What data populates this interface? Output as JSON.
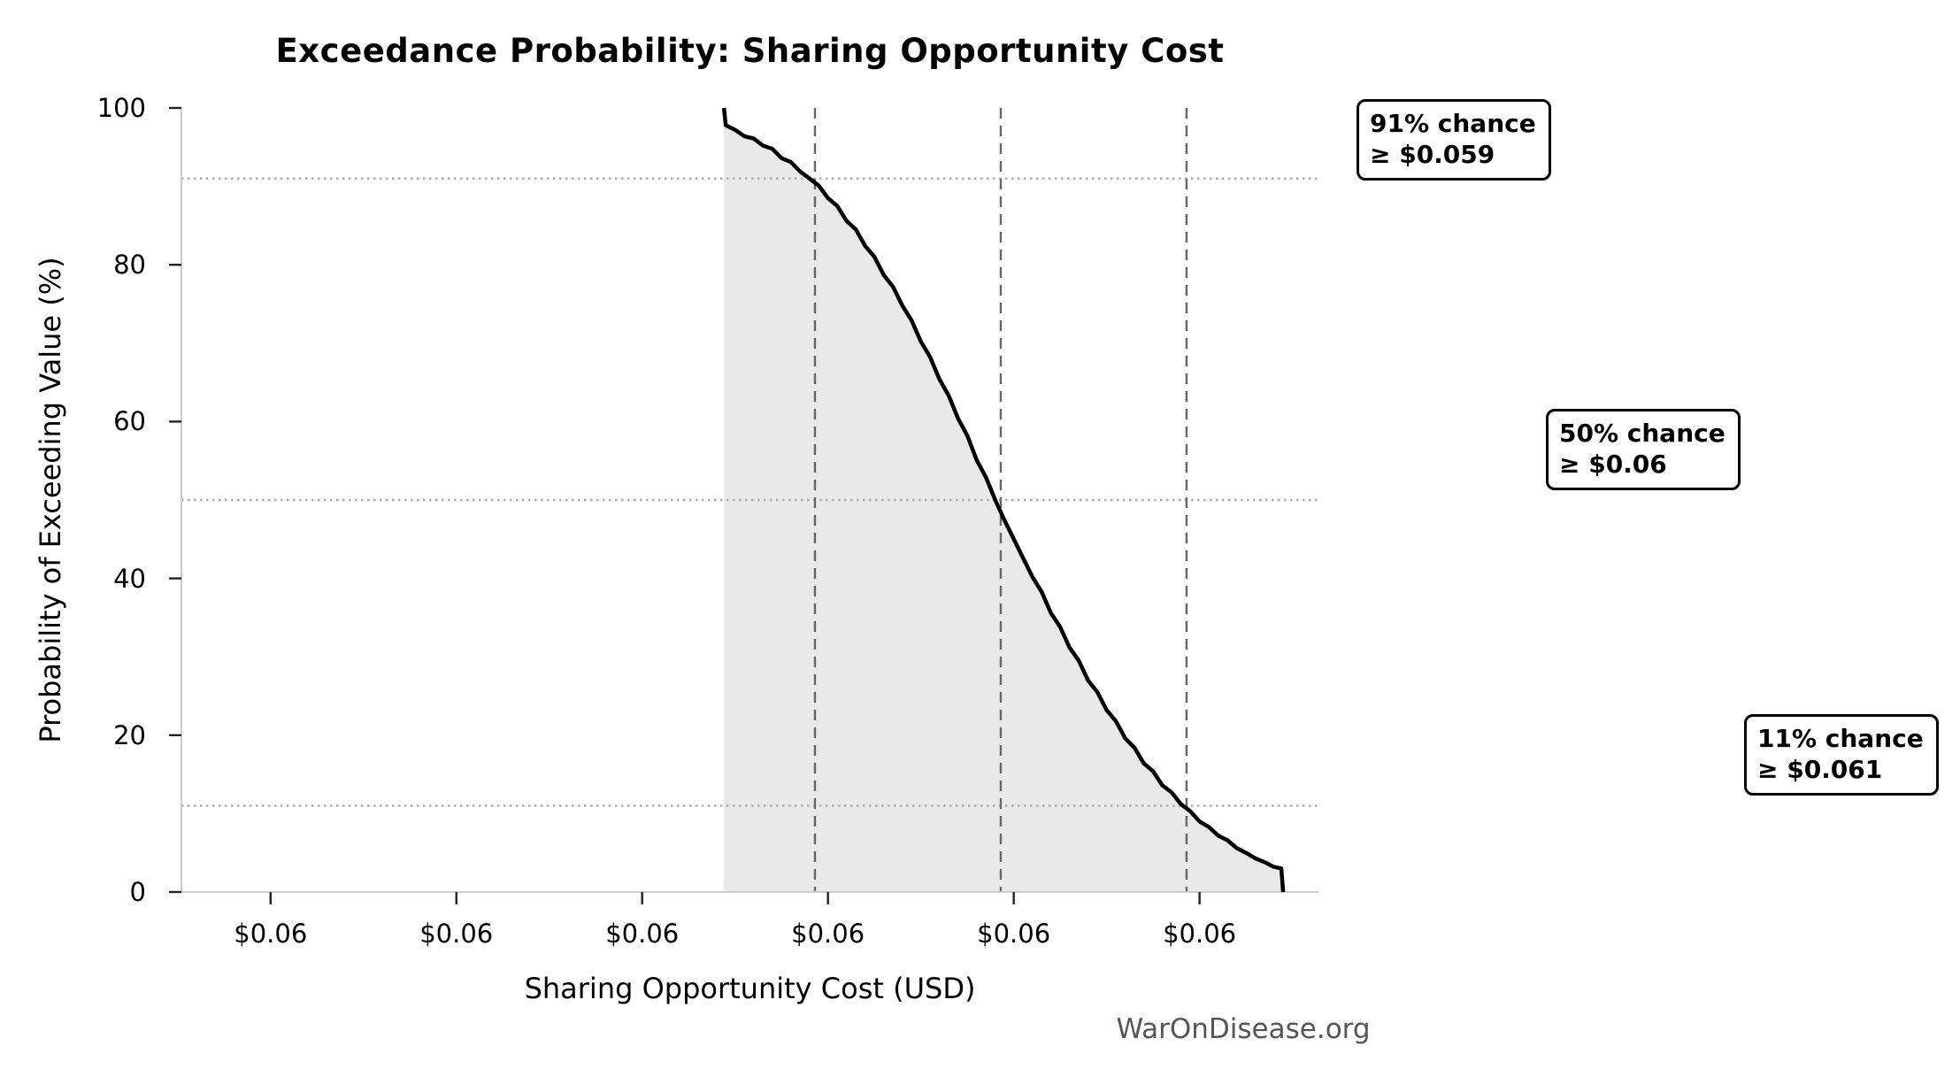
{
  "title": "Exceedance Probability: Sharing Opportunity Cost",
  "watermark": "WarOnDisease.org",
  "annotations": [
    {
      "line1": "91% chance",
      "line2": "≥ $0.059",
      "probability_pct": 91,
      "threshold_usd": 0.059
    },
    {
      "line1": "50% chance",
      "line2": "≥ $0.06",
      "probability_pct": 50,
      "threshold_usd": 0.06
    },
    {
      "line1": "11% chance",
      "line2": "≥ $0.061",
      "probability_pct": 11,
      "threshold_usd": 0.061
    }
  ],
  "colors": {
    "curve": "#000000",
    "fill": "#e9e9e9",
    "dashed_guide": "#666666",
    "dotted_guide": "#ababab",
    "spine": "#cccccc",
    "watermark": "#555555"
  },
  "chart_data": {
    "type": "line",
    "title": "Exceedance Probability: Sharing Opportunity Cost",
    "xlabel": "Sharing Opportunity Cost (USD)",
    "ylabel": "Probability of Exceeding Value (%)",
    "xlim": [
      0.05552,
      0.06164
    ],
    "ylim": [
      0,
      100
    ],
    "grid": {
      "h_dotted_probabilities": [
        91,
        50,
        11
      ],
      "v_dashed_values": [
        0.05893,
        0.05993,
        0.06093
      ]
    },
    "legend": "none",
    "xticks": [
      {
        "value": 0.056,
        "label": "$0.06"
      },
      {
        "value": 0.057,
        "label": "$0.06"
      },
      {
        "value": 0.058,
        "label": "$0.06"
      },
      {
        "value": 0.059,
        "label": "$0.06"
      },
      {
        "value": 0.06,
        "label": "$0.06"
      },
      {
        "value": 0.061,
        "label": "$0.06"
      }
    ],
    "yticks": [
      {
        "value": 0,
        "label": "0"
      },
      {
        "value": 20,
        "label": "20"
      },
      {
        "value": 40,
        "label": "40"
      },
      {
        "value": 60,
        "label": "60"
      },
      {
        "value": 80,
        "label": "80"
      },
      {
        "value": 100,
        "label": "100"
      }
    ],
    "series": [
      {
        "name": "exceedance-probability-curve",
        "fill_to_zero": true,
        "points": [
          [
            0.05844,
            100
          ],
          [
            0.05845,
            97.8
          ],
          [
            0.0585,
            97.2
          ],
          [
            0.05855,
            96.4
          ],
          [
            0.0586,
            96.1
          ],
          [
            0.05865,
            95.2
          ],
          [
            0.0587,
            94.8
          ],
          [
            0.05875,
            93.6
          ],
          [
            0.0588,
            93.1
          ],
          [
            0.05885,
            91.9
          ],
          [
            0.0589,
            91.0
          ],
          [
            0.05895,
            90.1
          ],
          [
            0.059,
            88.5
          ],
          [
            0.05905,
            87.5
          ],
          [
            0.0591,
            85.6
          ],
          [
            0.05915,
            84.5
          ],
          [
            0.0592,
            82.4
          ],
          [
            0.05925,
            81.0
          ],
          [
            0.0593,
            78.7
          ],
          [
            0.05935,
            77.2
          ],
          [
            0.0594,
            74.8
          ],
          [
            0.05945,
            72.9
          ],
          [
            0.0595,
            70.2
          ],
          [
            0.05955,
            68.2
          ],
          [
            0.0596,
            65.4
          ],
          [
            0.05965,
            63.3
          ],
          [
            0.0597,
            60.4
          ],
          [
            0.05975,
            58.2
          ],
          [
            0.0598,
            55.1
          ],
          [
            0.05985,
            52.9
          ],
          [
            0.0599,
            50.0
          ],
          [
            0.05995,
            47.4
          ],
          [
            0.06,
            45.0
          ],
          [
            0.06005,
            42.6
          ],
          [
            0.0601,
            40.2
          ],
          [
            0.06015,
            38.3
          ],
          [
            0.0602,
            35.6
          ],
          [
            0.06025,
            33.8
          ],
          [
            0.0603,
            31.2
          ],
          [
            0.06035,
            29.5
          ],
          [
            0.0604,
            27.0
          ],
          [
            0.06045,
            25.5
          ],
          [
            0.0605,
            23.2
          ],
          [
            0.06055,
            21.8
          ],
          [
            0.0606,
            19.6
          ],
          [
            0.06065,
            18.4
          ],
          [
            0.0607,
            16.4
          ],
          [
            0.06075,
            15.4
          ],
          [
            0.0608,
            13.6
          ],
          [
            0.06085,
            12.7
          ],
          [
            0.0609,
            11.2
          ],
          [
            0.06095,
            10.3
          ],
          [
            0.061,
            9.0
          ],
          [
            0.06105,
            8.3
          ],
          [
            0.0611,
            7.2
          ],
          [
            0.06115,
            6.6
          ],
          [
            0.0612,
            5.6
          ],
          [
            0.06125,
            5.0
          ],
          [
            0.0613,
            4.3
          ],
          [
            0.06135,
            3.8
          ],
          [
            0.0614,
            3.2
          ],
          [
            0.06144,
            3.0
          ],
          [
            0.06145,
            0
          ]
        ]
      }
    ]
  }
}
